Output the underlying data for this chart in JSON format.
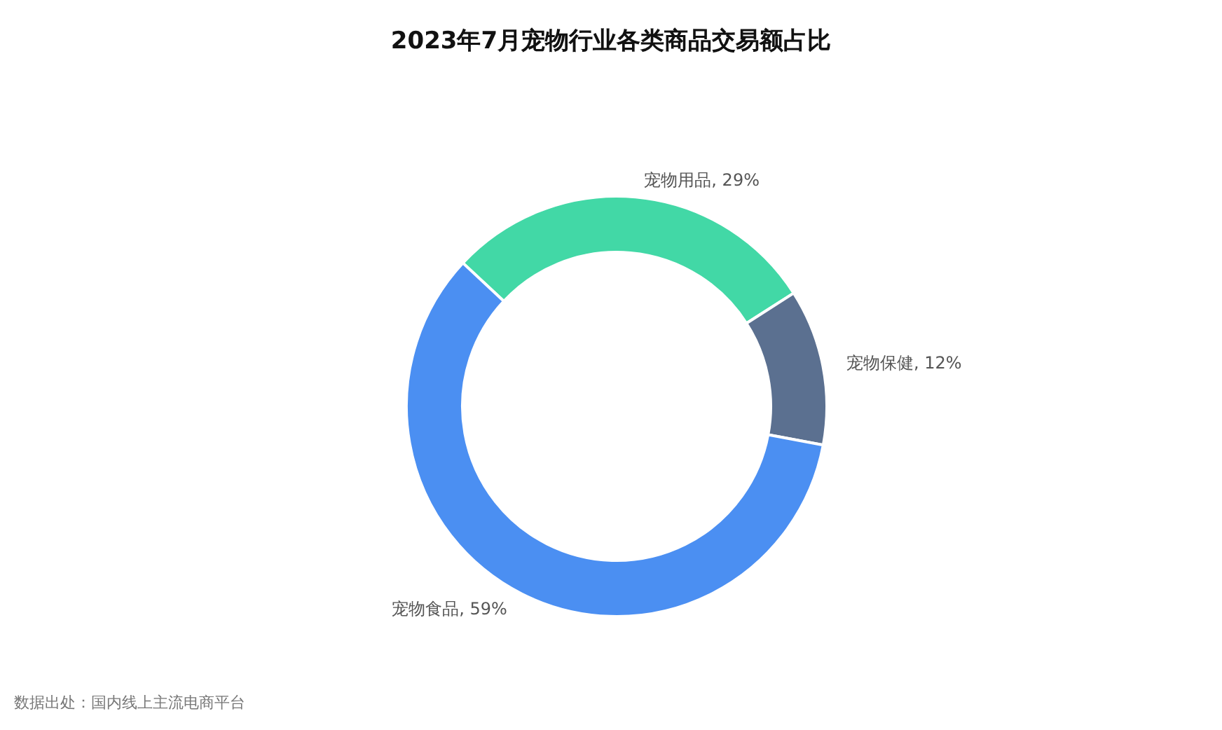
{
  "chart_data": {
    "type": "donut",
    "title": "2023年7月宠物行业各类商品交易额占比",
    "categories": [
      "宠物用品",
      "宠物保健",
      "宠物食品"
    ],
    "values": [
      29,
      12,
      59
    ],
    "value_labels": [
      "29%",
      "12%",
      "59%"
    ],
    "colors": [
      "#42d8a6",
      "#5b7090",
      "#4b8ff2"
    ],
    "legend": false,
    "annotations": [
      "数据出处：国内线上主流电商平台"
    ]
  }
}
